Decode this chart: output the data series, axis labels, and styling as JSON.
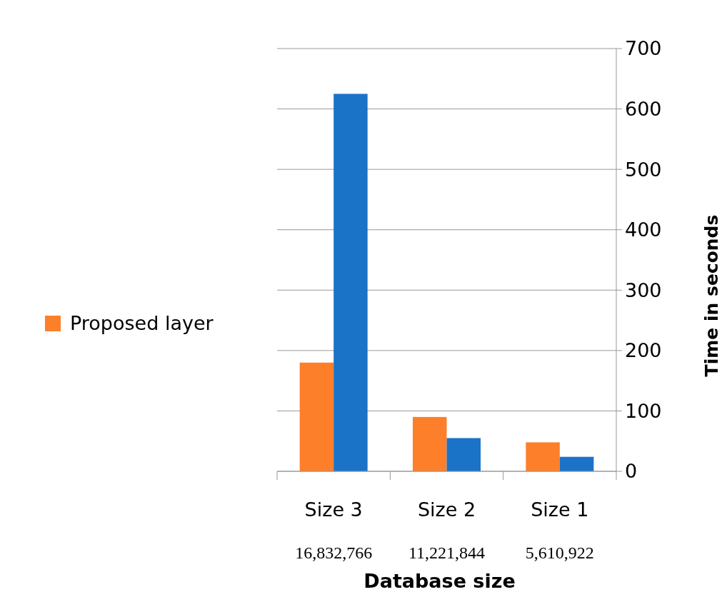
{
  "chart_data": {
    "type": "bar",
    "categories": [
      "Size 3\n16,832,766",
      "Size 2\n11,221,844",
      "Size 1\n5,610,922"
    ],
    "series": [
      {
        "name": "Proposed layer",
        "color": "#fe7f2a",
        "values": [
          180,
          90,
          48
        ]
      },
      {
        "color": "#1a73c6",
        "values": [
          625,
          55,
          24
        ]
      }
    ],
    "ylabel": "Time in seconds",
    "xlabel": "Database size",
    "ylim": [
      0,
      700
    ],
    "yticks": [
      0,
      100,
      200,
      300,
      400,
      500,
      600,
      700
    ],
    "grid": "y",
    "legend": "left"
  }
}
